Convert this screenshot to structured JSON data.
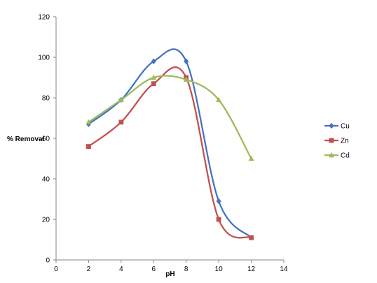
{
  "chart_data": {
    "type": "line",
    "title": "",
    "xlabel": "pH",
    "ylabel": "% Removal",
    "xlim": [
      0,
      14
    ],
    "ylim": [
      0,
      120
    ],
    "xticks": [
      0,
      2,
      4,
      6,
      8,
      10,
      12,
      14
    ],
    "yticks": [
      0,
      20,
      40,
      60,
      80,
      100,
      120
    ],
    "x": [
      2,
      4,
      6,
      8,
      10,
      12
    ],
    "grid": false,
    "smooth": true,
    "legend_position": "right",
    "series": [
      {
        "name": "Cu",
        "color": "#4472C4",
        "marker": "diamond",
        "values": [
          67,
          79,
          98,
          98,
          29,
          11
        ]
      },
      {
        "name": "Zn",
        "color": "#C0504D",
        "marker": "square",
        "values": [
          56,
          68,
          87,
          90,
          20,
          11
        ]
      },
      {
        "name": "Cd",
        "color": "#9BBB59",
        "marker": "triangle",
        "values": [
          68,
          79,
          90,
          89,
          79,
          50
        ]
      }
    ]
  }
}
